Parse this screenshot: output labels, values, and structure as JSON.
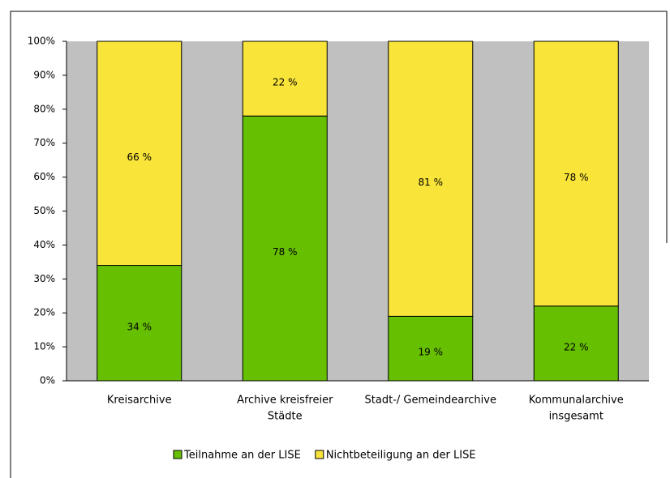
{
  "chart_data": {
    "type": "stacked_bar",
    "categories": [
      [
        "Kreisarchive"
      ],
      [
        "Archive kreisfreier",
        "Städte"
      ],
      [
        "Stadt-/ Gemeindearchive"
      ],
      [
        "Kommunalarchive",
        "insgesamt"
      ]
    ],
    "series": [
      {
        "name": "Teilnahme an der LISE",
        "color": "#66bf00",
        "values": [
          34,
          78,
          19,
          22
        ],
        "value_labels": [
          "34 %",
          "78 %",
          "19 %",
          "22 %"
        ]
      },
      {
        "name": "Nichtbeteiligung an der LISE",
        "color": "#f9e43a",
        "values": [
          66,
          22,
          81,
          78
        ],
        "value_labels": [
          "66 %",
          "22 %",
          "81 %",
          "78 %"
        ]
      }
    ],
    "ylim": [
      0,
      100
    ],
    "yticks": [
      {
        "value": 0,
        "label": "0%"
      },
      {
        "value": 10,
        "label": "10%"
      },
      {
        "value": 20,
        "label": "20%"
      },
      {
        "value": 30,
        "label": "30%"
      },
      {
        "value": 40,
        "label": "40%"
      },
      {
        "value": 50,
        "label": "50%"
      },
      {
        "value": 60,
        "label": "60%"
      },
      {
        "value": 70,
        "label": "70%"
      },
      {
        "value": 80,
        "label": "80%"
      },
      {
        "value": 90,
        "label": "90%"
      },
      {
        "value": 100,
        "label": "100%"
      }
    ],
    "plot_background": "#c0c0c0",
    "legend": "bottom"
  }
}
